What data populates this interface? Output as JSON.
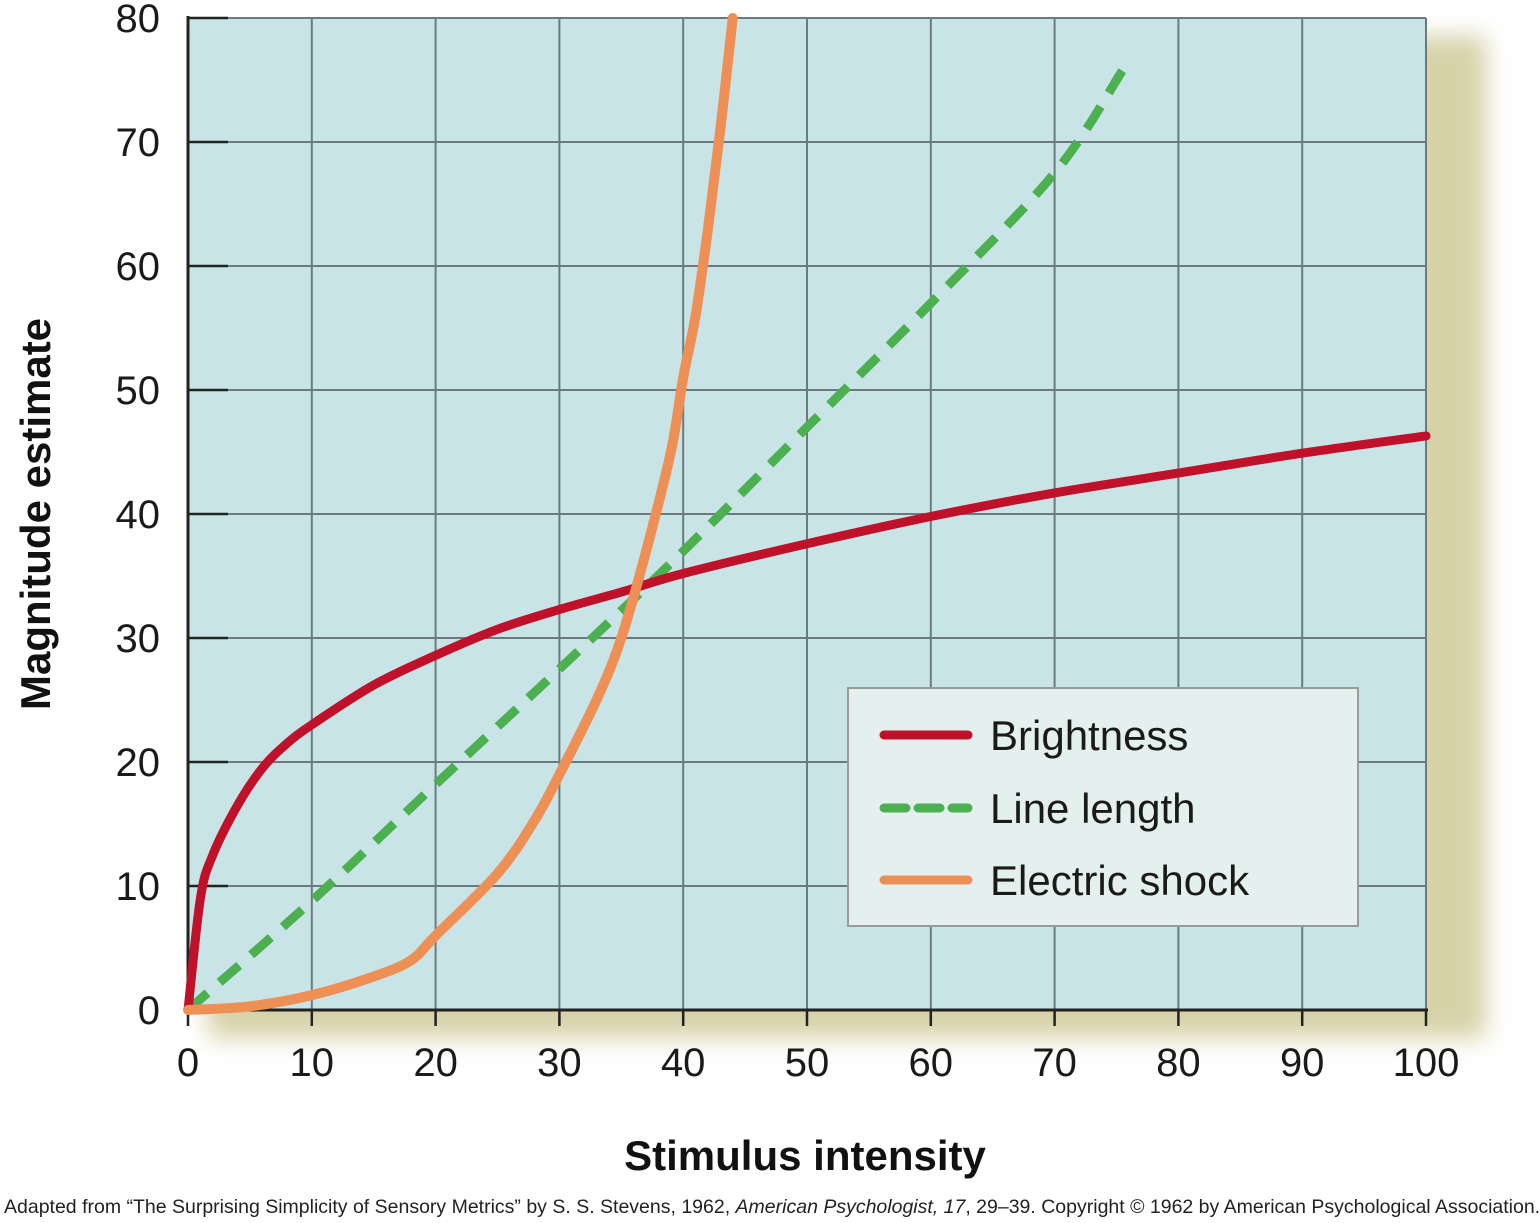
{
  "chart_data": {
    "type": "line",
    "xlabel": "Stimulus intensity",
    "ylabel": "Magnitude estimate",
    "xlim": [
      0,
      100
    ],
    "ylim": [
      0,
      80
    ],
    "x_ticks": [
      "0",
      "10",
      "20",
      "30",
      "40",
      "50",
      "60",
      "70",
      "80",
      "90",
      "100"
    ],
    "y_ticks": [
      "0",
      "10",
      "20",
      "30",
      "40",
      "50",
      "60",
      "70",
      "80"
    ],
    "grid": true,
    "legend_position": "bottom-right",
    "background_color": "#c9e4e6",
    "series": [
      {
        "name": "Brightness",
        "color": "#c0112a",
        "style": "solid",
        "points": [
          [
            0,
            0
          ],
          [
            1,
            9
          ],
          [
            2,
            12.5
          ],
          [
            4,
            16.5
          ],
          [
            6,
            19.5
          ],
          [
            8,
            21.5
          ],
          [
            10,
            23
          ],
          [
            15,
            26.2
          ],
          [
            20,
            28.6
          ],
          [
            25,
            30.7
          ],
          [
            30,
            32.3
          ],
          [
            35,
            33.7
          ],
          [
            40,
            35.2
          ],
          [
            50,
            37.6
          ],
          [
            60,
            39.8
          ],
          [
            70,
            41.7
          ],
          [
            80,
            43.3
          ],
          [
            90,
            44.9
          ],
          [
            100,
            46.3
          ]
        ]
      },
      {
        "name": "Line length",
        "color": "#4caf50",
        "style": "dashed",
        "points": [
          [
            0,
            0
          ],
          [
            10,
            8.8
          ],
          [
            20,
            18.2
          ],
          [
            30,
            27.5
          ],
          [
            40,
            37
          ],
          [
            50,
            47
          ],
          [
            60,
            57
          ],
          [
            70,
            67.5
          ],
          [
            75.5,
            75.8
          ]
        ]
      },
      {
        "name": "Electric shock",
        "color": "#ee8f55",
        "style": "solid",
        "points": [
          [
            0,
            0
          ],
          [
            5,
            0.3
          ],
          [
            10,
            1.2
          ],
          [
            15,
            2.7
          ],
          [
            18,
            4
          ],
          [
            20,
            6
          ],
          [
            25,
            11
          ],
          [
            28,
            15.3
          ],
          [
            30,
            19
          ],
          [
            33,
            25
          ],
          [
            35,
            30
          ],
          [
            37,
            37
          ],
          [
            39,
            45
          ],
          [
            40,
            51
          ],
          [
            41,
            56
          ],
          [
            42,
            63
          ],
          [
            43,
            71
          ],
          [
            44,
            80
          ]
        ]
      }
    ]
  },
  "credit": {
    "part1": "Adapted from “The Surprising Simplicity of Sensory Metrics” by S. S. Stevens, 1962, ",
    "journal": "American Psychologist, 17",
    "part2": ", 29–39. Copyright © 1962 by American Psychological Association."
  }
}
